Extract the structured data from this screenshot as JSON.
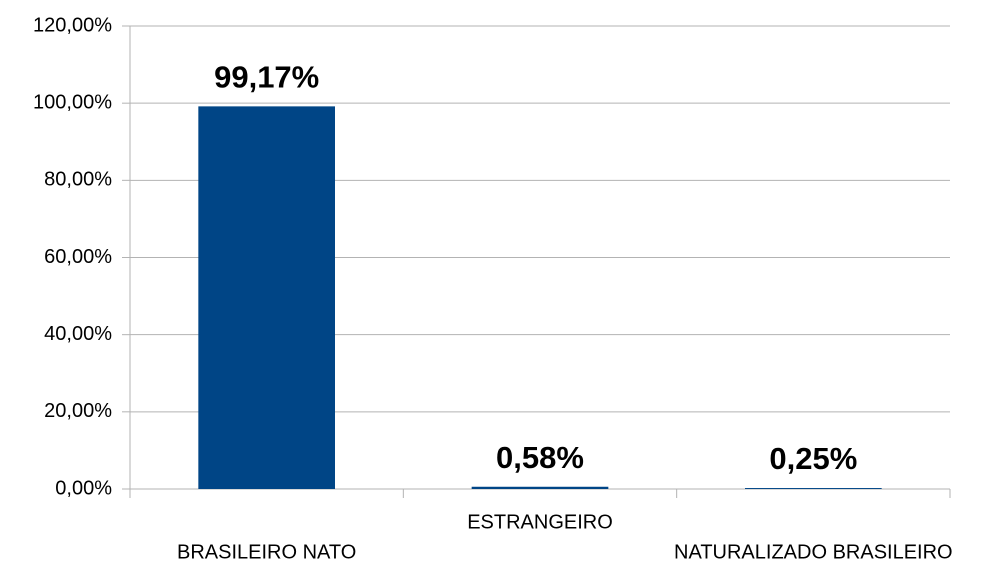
{
  "chart_data": {
    "type": "bar",
    "categories": [
      "BRASILEIRO NATO",
      "ESTRANGEIRO",
      "NATURALIZADO BRASILEIRO"
    ],
    "values": [
      99.17,
      0.58,
      0.25
    ],
    "value_labels": [
      "99,17%",
      "0,58%",
      "0,25%"
    ],
    "color": "#004586",
    "ylim": [
      0,
      120
    ],
    "yticks": [
      {
        "value": 0,
        "label": "0,00%"
      },
      {
        "value": 20,
        "label": "20,00%"
      },
      {
        "value": 40,
        "label": "40,00%"
      },
      {
        "value": 60,
        "label": "60,00%"
      },
      {
        "value": 80,
        "label": "80,00%"
      },
      {
        "value": 100,
        "label": "100,00%"
      },
      {
        "value": 120,
        "label": "120,00%"
      }
    ],
    "grid": true
  }
}
